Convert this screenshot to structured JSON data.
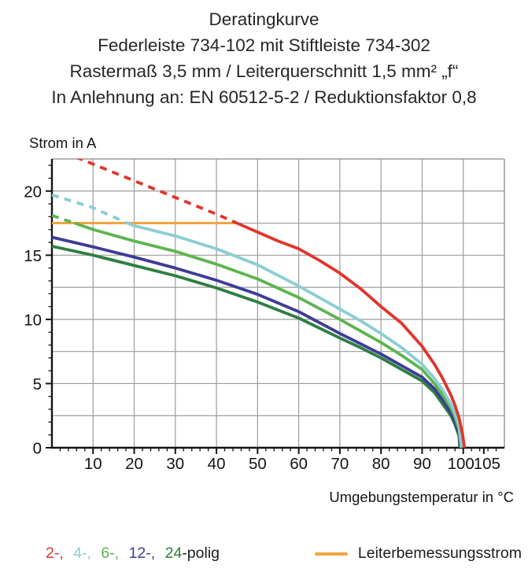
{
  "title_lines": [
    "Deratingkurve",
    "Federleiste 734-102 mit Stiftleiste 734-302",
    "Rastermaß 3,5 mm / Leiterquerschnitt 1,5 mm² „f“",
    "In Anlehnung an: EN 60512-5-2 / Reduktionsfaktor 0,8"
  ],
  "legend": {
    "polig_items": [
      {
        "label": "2-,",
        "color": "#e1352b"
      },
      {
        "label": "4-,",
        "color": "#8bcdd3"
      },
      {
        "label": "6-,",
        "color": "#5db54f"
      },
      {
        "label": "12-,",
        "color": "#3e3c96"
      },
      {
        "label": "24",
        "color": "#2d7f40"
      }
    ],
    "polig_suffix": "-polig",
    "rated_label": "Leiterbemessungsstrom",
    "rated_color": "#f3a43f"
  },
  "chart_data": {
    "type": "line",
    "title": "Deratingkurve",
    "xlabel": "Umgebungstemperatur in °C",
    "ylabel": "Strom in A",
    "xlim": [
      0,
      110
    ],
    "ylim": [
      0,
      22.5
    ],
    "x_tick_labels": [
      10,
      20,
      30,
      40,
      50,
      60,
      70,
      80,
      90,
      100,
      105
    ],
    "y_tick_labels": [
      0,
      5,
      10,
      15,
      20
    ],
    "x_grid_step": 10,
    "y_grid_step": 2.5,
    "x_minor_tick_step": 2,
    "y_minor_tick_step": 1,
    "grid": true,
    "grid_color": "#9c9c9c",
    "axis_color": "#141414",
    "rated_current": {
      "name": "Leiterbemessungsstrom",
      "value": 17.5,
      "x_start": 0,
      "x_end": 45,
      "color": "#f3a43f"
    },
    "dash_rule": "curve segments above rated current 17.5 A are dashed",
    "series": [
      {
        "name": "2-polig",
        "color": "#e1352b",
        "dashed_above": 17.5,
        "points": [
          [
            0,
            23.4
          ],
          [
            10,
            22.1
          ],
          [
            20,
            20.8
          ],
          [
            30,
            19.5
          ],
          [
            40,
            18.2
          ],
          [
            45,
            17.5
          ],
          [
            50,
            16.8
          ],
          [
            55,
            16.1
          ],
          [
            60,
            15.5
          ],
          [
            65,
            14.6
          ],
          [
            70,
            13.6
          ],
          [
            75,
            12.4
          ],
          [
            80,
            11.0
          ],
          [
            85,
            9.7
          ],
          [
            90,
            7.9
          ],
          [
            93,
            6.5
          ],
          [
            95,
            5.4
          ],
          [
            97,
            4.1
          ],
          [
            98,
            3.3
          ],
          [
            99,
            2.3
          ],
          [
            99.8,
            1.1
          ],
          [
            100.3,
            0
          ]
        ]
      },
      {
        "name": "4-polig",
        "color": "#8bcdd3",
        "dashed_above": 17.5,
        "points": [
          [
            0,
            19.7
          ],
          [
            10,
            18.7
          ],
          [
            18,
            17.55
          ],
          [
            20,
            17.3
          ],
          [
            30,
            16.5
          ],
          [
            40,
            15.5
          ],
          [
            50,
            14.25
          ],
          [
            60,
            12.6
          ],
          [
            70,
            10.8
          ],
          [
            75,
            9.9
          ],
          [
            80,
            8.9
          ],
          [
            85,
            7.8
          ],
          [
            90,
            6.5
          ],
          [
            93,
            5.4
          ],
          [
            95,
            4.5
          ],
          [
            97,
            3.4
          ],
          [
            98,
            2.7
          ],
          [
            99,
            1.7
          ],
          [
            99.6,
            0
          ]
        ]
      },
      {
        "name": "6-polig",
        "color": "#5db54f",
        "dashed_above": 17.5,
        "points": [
          [
            0,
            18.1
          ],
          [
            5,
            17.55
          ],
          [
            6,
            17.45
          ],
          [
            10,
            17.0
          ],
          [
            20,
            16.1
          ],
          [
            30,
            15.3
          ],
          [
            40,
            14.3
          ],
          [
            50,
            13.15
          ],
          [
            60,
            11.7
          ],
          [
            70,
            10.0
          ],
          [
            75,
            9.1
          ],
          [
            80,
            8.2
          ],
          [
            85,
            7.2
          ],
          [
            90,
            6.1
          ],
          [
            93,
            5.0
          ],
          [
            95,
            4.1
          ],
          [
            97,
            3.1
          ],
          [
            98,
            2.4
          ],
          [
            99,
            1.4
          ],
          [
            99.5,
            0
          ]
        ]
      },
      {
        "name": "12-polig",
        "color": "#3e3c96",
        "dashed_above": null,
        "points": [
          [
            0,
            16.4
          ],
          [
            10,
            15.65
          ],
          [
            20,
            14.85
          ],
          [
            30,
            14.0
          ],
          [
            40,
            13.05
          ],
          [
            50,
            11.95
          ],
          [
            60,
            10.6
          ],
          [
            70,
            8.9
          ],
          [
            75,
            8.1
          ],
          [
            80,
            7.3
          ],
          [
            85,
            6.4
          ],
          [
            90,
            5.5
          ],
          [
            93,
            4.6
          ],
          [
            95,
            3.7
          ],
          [
            97,
            2.7
          ],
          [
            98,
            2.0
          ],
          [
            99,
            1.1
          ],
          [
            99.3,
            0
          ]
        ]
      },
      {
        "name": "24-polig",
        "color": "#2d7f40",
        "dashed_above": null,
        "points": [
          [
            0,
            15.7
          ],
          [
            10,
            15.0
          ],
          [
            20,
            14.2
          ],
          [
            30,
            13.4
          ],
          [
            40,
            12.45
          ],
          [
            50,
            11.35
          ],
          [
            60,
            10.1
          ],
          [
            70,
            8.55
          ],
          [
            75,
            7.8
          ],
          [
            80,
            7.0
          ],
          [
            85,
            6.1
          ],
          [
            90,
            5.2
          ],
          [
            93,
            4.3
          ],
          [
            95,
            3.4
          ],
          [
            97,
            2.5
          ],
          [
            98,
            1.8
          ],
          [
            99,
            0.9
          ],
          [
            99.15,
            0
          ]
        ]
      }
    ]
  }
}
